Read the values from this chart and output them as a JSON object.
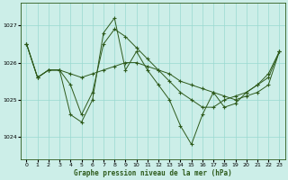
{
  "xlabel": "Graphe pression niveau de la mer (hPa)",
  "background_color": "#cceee8",
  "line_color": "#2d5a1b",
  "grid_color": "#99d9d0",
  "xlim": [
    -0.5,
    23.5
  ],
  "ylim": [
    1023.4,
    1027.6
  ],
  "yticks": [
    1024,
    1025,
    1026,
    1027
  ],
  "xticks": [
    0,
    1,
    2,
    3,
    4,
    5,
    6,
    7,
    8,
    9,
    10,
    11,
    12,
    13,
    14,
    15,
    16,
    17,
    18,
    19,
    20,
    21,
    22,
    23
  ],
  "series": [
    [
      1026.5,
      1025.6,
      1025.8,
      1025.8,
      1025.7,
      1025.6,
      1025.7,
      1025.8,
      1025.9,
      1026.0,
      1026.0,
      1025.9,
      1025.8,
      1025.7,
      1025.5,
      1025.4,
      1025.3,
      1025.2,
      1025.1,
      1025.0,
      1025.1,
      1025.2,
      1025.4,
      1026.3
    ],
    [
      1026.5,
      1025.6,
      1025.8,
      1025.8,
      1025.4,
      1024.6,
      1025.2,
      1026.5,
      1026.9,
      1026.7,
      1026.4,
      1026.1,
      1025.8,
      1025.5,
      1025.2,
      1025.0,
      1024.8,
      1024.8,
      1025.0,
      1025.1,
      1025.2,
      1025.4,
      1025.6,
      1026.3
    ],
    [
      1026.5,
      1025.6,
      1025.8,
      1025.8,
      1024.6,
      1024.4,
      1025.0,
      1026.8,
      1027.2,
      1025.8,
      1026.3,
      1025.8,
      1025.4,
      1025.0,
      1024.3,
      1023.8,
      1024.6,
      1025.2,
      1024.8,
      1024.9,
      1025.2,
      1025.4,
      1025.7,
      1026.3
    ]
  ]
}
